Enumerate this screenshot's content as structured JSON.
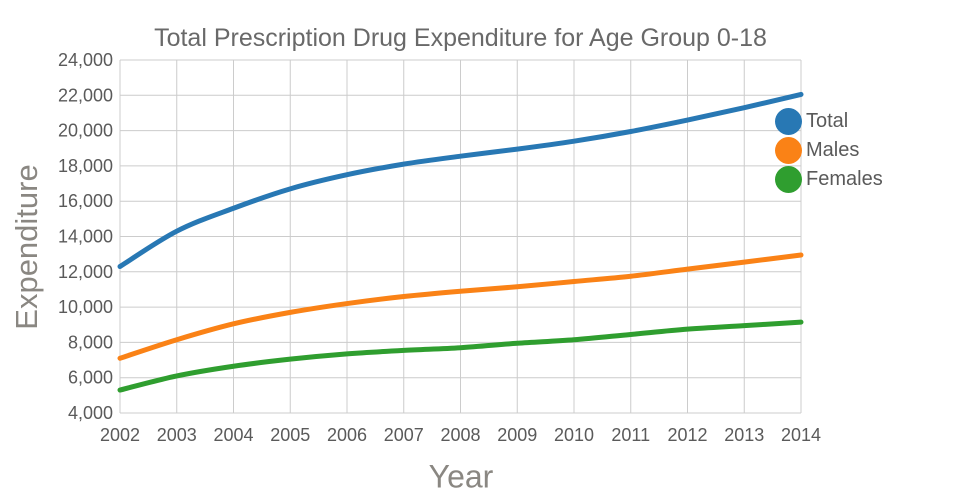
{
  "chart_data": {
    "type": "line",
    "title": "Total Prescription Drug Expenditure for Age Group 0-18",
    "xlabel": "Year",
    "ylabel": "Expenditure",
    "x": [
      2002,
      2003,
      2004,
      2005,
      2006,
      2007,
      2008,
      2009,
      2010,
      2011,
      2012,
      2013,
      2014
    ],
    "series": [
      {
        "name": "Total",
        "color": "#2878b4",
        "values": [
          12300,
          14300,
          15600,
          16700,
          17500,
          18100,
          18550,
          18950,
          19400,
          19950,
          20600,
          21300,
          22050
        ]
      },
      {
        "name": "Males",
        "color": "#fa8216",
        "values": [
          7100,
          8150,
          9050,
          9700,
          10200,
          10600,
          10900,
          11150,
          11450,
          11750,
          12150,
          12550,
          12950
        ]
      },
      {
        "name": "Females",
        "color": "#2f9e2f",
        "values": [
          5300,
          6100,
          6650,
          7050,
          7350,
          7550,
          7700,
          7950,
          8150,
          8450,
          8750,
          8950,
          9150
        ]
      }
    ],
    "ylim": [
      4000,
      24000
    ],
    "ytick_step": 2000,
    "grid": true,
    "legend_position": "right",
    "gridline_color": "#cccccc",
    "tick_label_color": "#5a5a5a",
    "axis_title_color": "#8a8782"
  }
}
